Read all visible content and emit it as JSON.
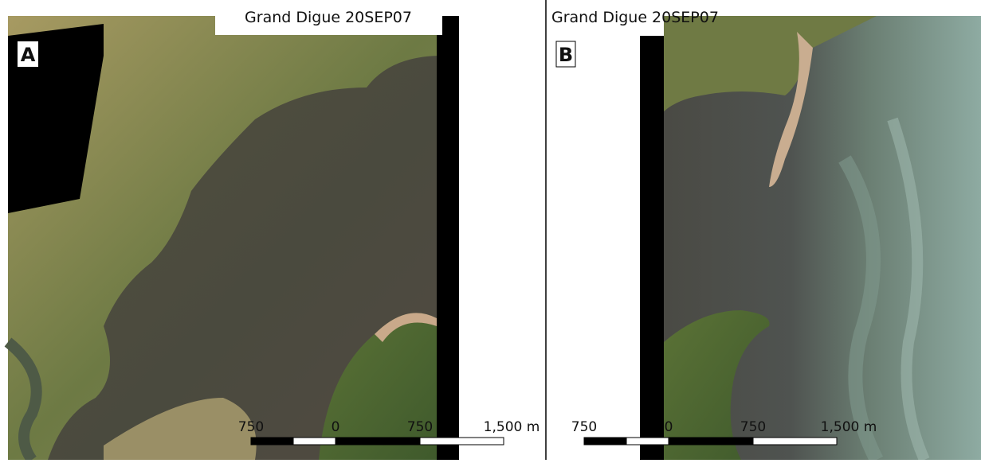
{
  "panels": [
    {
      "title": "Grand Digue 20SEP07",
      "label": "A",
      "scale_labels": [
        "750",
        "0",
        "750",
        "1,500 m"
      ]
    },
    {
      "title": "Grand Digue 20SEP07",
      "label": "B",
      "scale_labels": [
        "750",
        "0",
        "750",
        "1,500 m"
      ]
    }
  ]
}
